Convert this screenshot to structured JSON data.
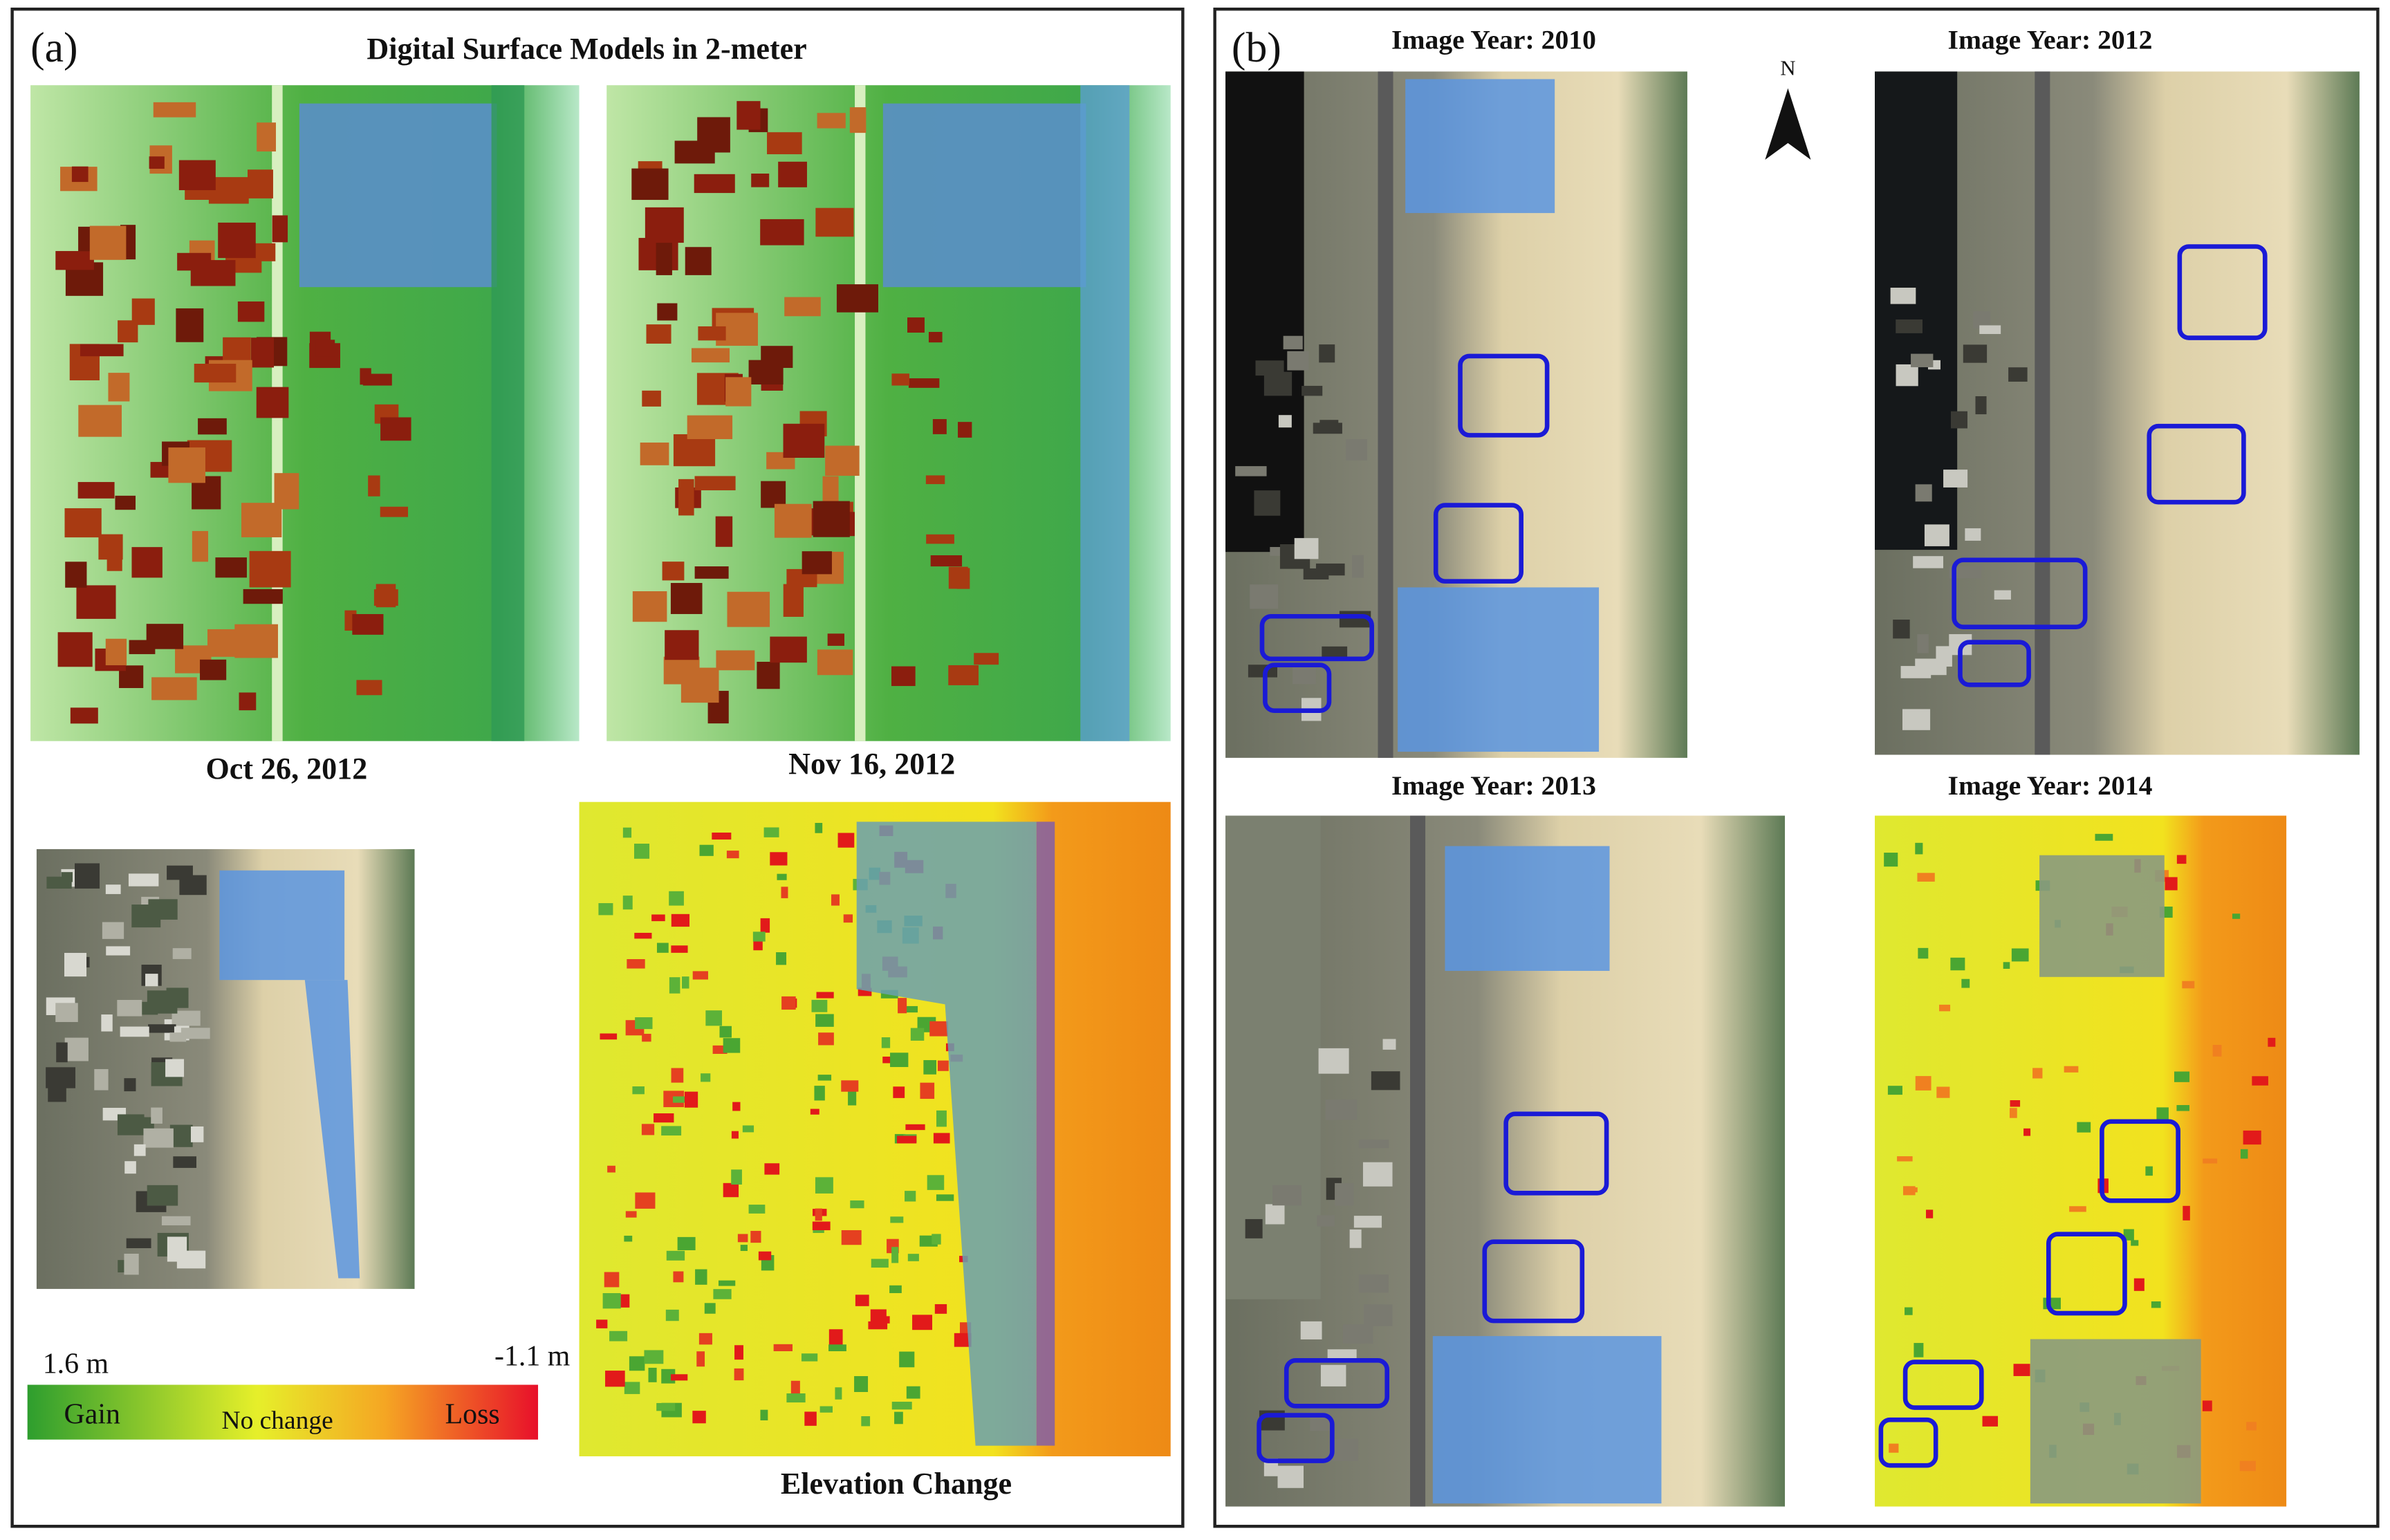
{
  "panel_a": {
    "label": "(a)",
    "title": "Digital Surface Models in 2-meter",
    "dates": [
      "Oct 26, 2012",
      "Nov 16, 2012"
    ],
    "legend": {
      "max_label": "1.6 m",
      "min_label": "-1.1 m",
      "gain": "Gain",
      "no_change": "No change",
      "loss": "Loss"
    },
    "change_title": "Elevation Change"
  },
  "panel_b": {
    "label": "(b)",
    "north": "N",
    "images": [
      {
        "title": "Image  Year: 2010"
      },
      {
        "title": "Image  Year: 2012"
      },
      {
        "title": "Image  Year: 2013"
      },
      {
        "title": "Image  Year: 2014"
      }
    ]
  }
}
